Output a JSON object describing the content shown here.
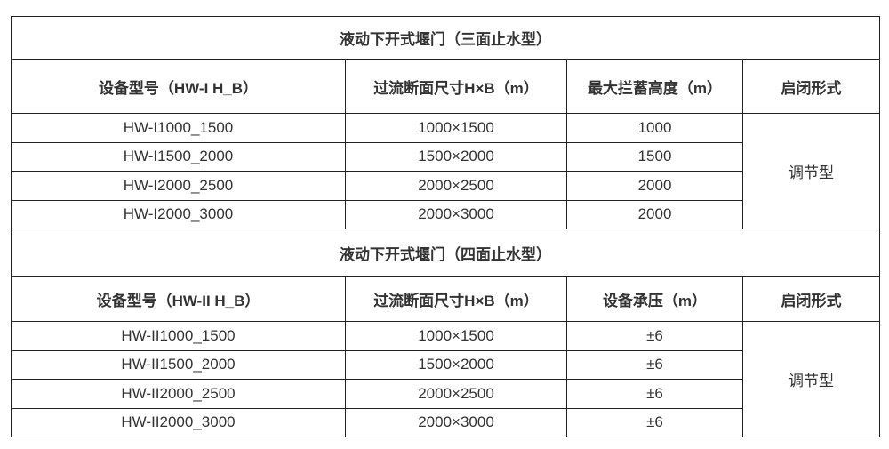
{
  "sections": [
    {
      "title": "液动下开式堰门（三面止水型）",
      "headers": [
        "设备型号（HW-I H_B）",
        "过流断面尺寸H×B（m）",
        "最大拦蓄高度（m）",
        "启闭形式"
      ],
      "rows": [
        [
          "HW-I1000_1500",
          "1000×1500",
          "1000"
        ],
        [
          "HW-I1500_2000",
          "1500×2000",
          "1500"
        ],
        [
          "HW-I2000_2500",
          "2000×2500",
          "2000"
        ],
        [
          "HW-I2000_3000",
          "2000×3000",
          "2000"
        ]
      ],
      "mode": "调节型"
    },
    {
      "title": "液动下开式堰门（四面止水型）",
      "headers": [
        "设备型号（HW-II H_B）",
        "过流断面尺寸H×B（m）",
        "设备承压（m）",
        "启闭形式"
      ],
      "rows": [
        [
          "HW-II1000_1500",
          "1000×1500",
          "±6"
        ],
        [
          "HW-II1500_2000",
          "1500×2000",
          "±6"
        ],
        [
          "HW-II2000_2500",
          "2000×2500",
          "±6"
        ],
        [
          "HW-II2000_3000",
          "2000×3000",
          "±6"
        ]
      ],
      "mode": "调节型"
    }
  ]
}
